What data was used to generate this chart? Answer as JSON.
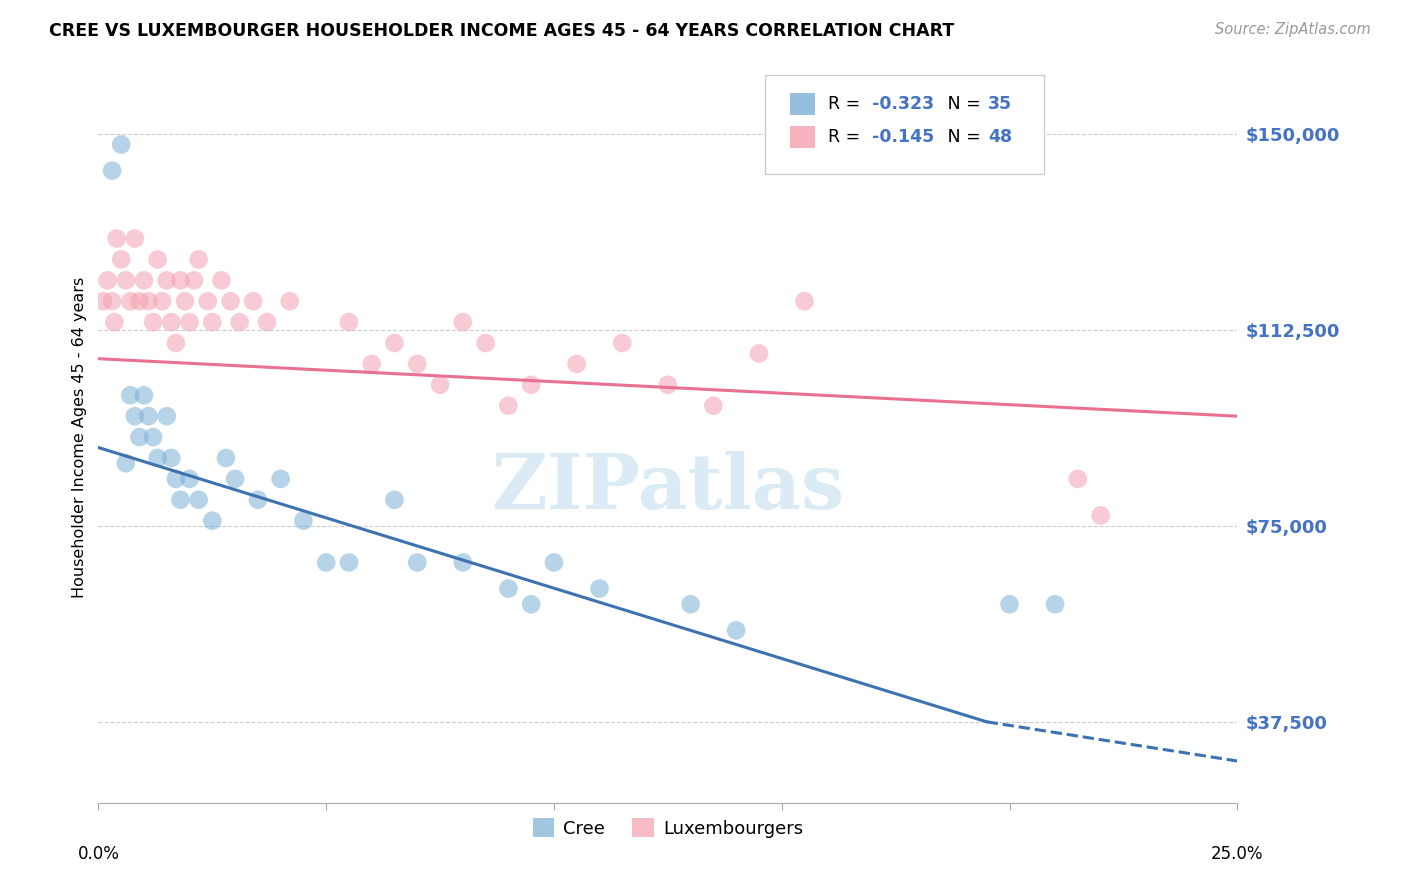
{
  "title": "CREE VS LUXEMBOURGER HOUSEHOLDER INCOME AGES 45 - 64 YEARS CORRELATION CHART",
  "source": "Source: ZipAtlas.com",
  "ylabel": "Householder Income Ages 45 - 64 years",
  "yticks": [
    37500,
    75000,
    112500,
    150000
  ],
  "ytick_labels": [
    "$37,500",
    "$75,000",
    "$112,500",
    "$150,000"
  ],
  "xmin": 0.0,
  "xmax": 25.0,
  "ymin": 22000,
  "ymax": 162000,
  "cree_R": -0.323,
  "cree_N": 35,
  "lux_R": -0.145,
  "lux_N": 48,
  "cree_color": "#7BAFD4",
  "lux_color": "#F4A0B0",
  "cree_line_color": "#3D72B0",
  "lux_line_color": "#E87090",
  "ytick_color": "#4472C4",
  "watermark_color": "#D5E8F5",
  "cree_scatter_x": [
    0.3,
    0.5,
    0.6,
    0.7,
    0.8,
    0.9,
    1.0,
    1.1,
    1.2,
    1.3,
    1.5,
    1.6,
    1.7,
    1.8,
    2.0,
    2.2,
    2.5,
    2.8,
    3.0,
    3.5,
    4.0,
    4.5,
    5.0,
    5.5,
    6.5,
    7.0,
    8.0,
    9.0,
    9.5,
    10.0,
    11.0,
    13.0,
    14.0,
    20.0,
    21.0
  ],
  "cree_scatter_y": [
    143000,
    148000,
    87000,
    100000,
    96000,
    92000,
    100000,
    96000,
    92000,
    88000,
    96000,
    88000,
    84000,
    80000,
    84000,
    80000,
    76000,
    88000,
    84000,
    80000,
    84000,
    76000,
    68000,
    68000,
    80000,
    68000,
    68000,
    63000,
    60000,
    68000,
    63000,
    60000,
    55000,
    60000,
    60000
  ],
  "lux_scatter_x": [
    0.1,
    0.2,
    0.3,
    0.35,
    0.4,
    0.5,
    0.6,
    0.7,
    0.8,
    0.9,
    1.0,
    1.1,
    1.2,
    1.3,
    1.4,
    1.5,
    1.6,
    1.7,
    1.8,
    1.9,
    2.0,
    2.1,
    2.2,
    2.4,
    2.5,
    2.7,
    2.9,
    3.1,
    3.4,
    3.7,
    4.2,
    5.5,
    6.0,
    6.5,
    7.0,
    7.5,
    8.0,
    8.5,
    9.0,
    9.5,
    10.5,
    11.5,
    12.5,
    13.5,
    14.5,
    15.5,
    21.5,
    22.0
  ],
  "lux_scatter_y": [
    118000,
    122000,
    118000,
    114000,
    130000,
    126000,
    122000,
    118000,
    130000,
    118000,
    122000,
    118000,
    114000,
    126000,
    118000,
    122000,
    114000,
    110000,
    122000,
    118000,
    114000,
    122000,
    126000,
    118000,
    114000,
    122000,
    118000,
    114000,
    118000,
    114000,
    118000,
    114000,
    106000,
    110000,
    106000,
    102000,
    114000,
    110000,
    98000,
    102000,
    106000,
    110000,
    102000,
    98000,
    108000,
    118000,
    84000,
    77000
  ],
  "cree_trend_x0": 0.0,
  "cree_trend_x1": 19.5,
  "cree_trend_y0": 90000,
  "cree_trend_y1": 37500,
  "cree_dash_x0": 19.5,
  "cree_dash_x1": 25.0,
  "cree_dash_y0": 37500,
  "cree_dash_y1": 30000,
  "lux_trend_x0": 0.0,
  "lux_trend_x1": 25.0,
  "lux_trend_y0": 107000,
  "lux_trend_y1": 96000
}
